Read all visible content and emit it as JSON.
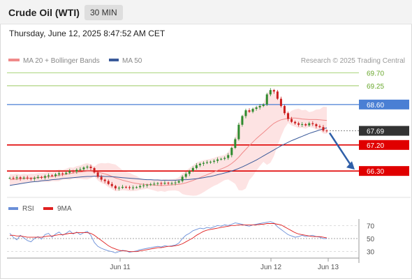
{
  "header": {
    "title": "Crude Oil (WTI)",
    "timeframe": "30 MIN"
  },
  "datetime": "Thursday, June 12, 2025 8:47:52 AM CET",
  "legend": {
    "ma20_label": "MA 20 + Bollinger Bands",
    "ma50_label": "MA 50",
    "credit": "Research © 2025 Trading Central"
  },
  "rsi_legend": {
    "rsi_label": "RSI",
    "ma_label": "9MA"
  },
  "colors": {
    "candle_up": "#2e8b2e",
    "candle_down": "#cc1f1f",
    "bollinger_fill": "#fde3e3",
    "ma20": "#f08a8a",
    "ma50": "#3a5a9a",
    "resistance_green": "#8bc34a",
    "pivot_blue": "#4a7fd4",
    "support_red": "#e00000",
    "last_price": "#333333",
    "rsi": "#6a8fd8",
    "rsi_ma": "#e02020",
    "arrow": "#2f5fa8"
  },
  "chart_data": {
    "type": "candlestick",
    "x_ticks": [
      "Jun 11",
      "Jun 12",
      "Jun 13"
    ],
    "y_range": [
      65.7,
      69.9
    ],
    "levels": [
      {
        "value": 69.7,
        "label": "69.70",
        "kind": "resistance"
      },
      {
        "value": 69.25,
        "label": "69.25",
        "kind": "resistance"
      },
      {
        "value": 68.6,
        "label": "68.60",
        "kind": "pivot"
      },
      {
        "value": 67.2,
        "label": "67.20",
        "kind": "support"
      },
      {
        "value": 66.3,
        "label": "66.30",
        "kind": "support"
      }
    ],
    "last_price": {
      "value": 67.69,
      "label": "67.69"
    },
    "closes": [
      66.06,
      66.05,
      66.08,
      66.04,
      66.07,
      66.05,
      66.03,
      66.06,
      66.09,
      66.07,
      66.12,
      66.15,
      66.13,
      66.18,
      66.22,
      66.2,
      66.24,
      66.3,
      66.28,
      66.34,
      66.36,
      66.42,
      66.45,
      66.4,
      66.25,
      66.1,
      66.0,
      65.95,
      65.85,
      65.78,
      65.7,
      65.72,
      65.75,
      65.74,
      65.72,
      65.73,
      65.74,
      65.78,
      65.8,
      65.82,
      65.84,
      65.86,
      65.88,
      65.86,
      65.89,
      65.87,
      65.88,
      65.9,
      65.95,
      66.1,
      66.2,
      66.3,
      66.4,
      66.5,
      66.55,
      66.58,
      66.6,
      66.62,
      66.65,
      66.7,
      66.72,
      66.75,
      66.85,
      67.1,
      67.4,
      67.9,
      68.2,
      68.4,
      68.35,
      68.45,
      68.5,
      68.55,
      68.6,
      68.95,
      69.1,
      69.05,
      68.8,
      68.55,
      68.3,
      68.1,
      68.0,
      67.95,
      67.9,
      67.92,
      67.88,
      67.95,
      67.92,
      67.85,
      67.82,
      67.7,
      67.69
    ],
    "ma20": [
      66.0,
      66.01,
      66.02,
      66.03,
      66.04,
      66.05,
      66.05,
      66.06,
      66.07,
      66.08,
      66.09,
      66.1,
      66.11,
      66.13,
      66.15,
      66.17,
      66.19,
      66.21,
      66.23,
      66.25,
      66.26,
      66.28,
      66.29,
      66.29,
      66.28,
      66.26,
      66.23,
      66.2,
      66.16,
      66.11,
      66.06,
      66.02,
      65.98,
      65.95,
      65.92,
      65.89,
      65.87,
      65.85,
      65.84,
      65.83,
      65.82,
      65.81,
      65.8,
      65.8,
      65.8,
      65.81,
      65.82,
      65.83,
      65.84,
      65.86,
      65.89,
      65.93,
      65.97,
      66.02,
      66.07,
      66.12,
      66.17,
      66.22,
      66.27,
      66.32,
      66.37,
      66.42,
      66.48,
      66.56,
      66.66,
      66.78,
      66.92,
      67.05,
      67.18,
      67.3,
      67.42,
      67.53,
      67.63,
      67.74,
      67.85,
      67.95,
      68.02,
      68.07,
      68.1,
      68.12,
      68.13,
      68.13,
      68.12,
      68.1,
      68.09,
      68.08,
      68.08,
      68.08,
      68.07,
      68.06,
      68.05
    ],
    "ma50": [
      65.8,
      65.82,
      65.84,
      65.86,
      65.88,
      65.9,
      65.92,
      65.93,
      65.94,
      65.96,
      65.97,
      65.98,
      66.0,
      66.01,
      66.02,
      66.04,
      66.05,
      66.06,
      66.07,
      66.08,
      66.09,
      66.1,
      66.11,
      66.11,
      66.12,
      66.12,
      66.12,
      66.11,
      66.11,
      66.1,
      66.09,
      66.08,
      66.07,
      66.06,
      66.05,
      66.04,
      66.03,
      66.02,
      66.01,
      66.0,
      66.0,
      65.99,
      65.99,
      65.98,
      65.98,
      65.98,
      65.98,
      65.98,
      65.99,
      66.0,
      66.0,
      66.01,
      66.02,
      66.03,
      66.05,
      66.07,
      66.09,
      66.11,
      66.14,
      66.17,
      66.2,
      66.23,
      66.26,
      66.3,
      66.34,
      66.39,
      66.44,
      66.5,
      66.56,
      66.62,
      66.68,
      66.75,
      66.82,
      66.89,
      66.96,
      67.03,
      67.1,
      67.17,
      67.23,
      67.29,
      67.35,
      67.4,
      67.45,
      67.5,
      67.55,
      67.6,
      67.64,
      67.68,
      67.72,
      67.76,
      67.79
    ]
  },
  "rsi_chart": {
    "type": "line",
    "y_ticks": [
      "70",
      "50",
      "30"
    ],
    "y_range": [
      20,
      80
    ],
    "rsi": [
      58,
      52,
      48,
      55,
      51,
      47,
      45,
      50,
      53,
      49,
      56,
      58,
      52,
      57,
      60,
      55,
      58,
      62,
      57,
      60,
      56,
      59,
      61,
      55,
      44,
      38,
      35,
      33,
      31,
      30,
      28,
      30,
      32,
      31,
      29,
      30,
      31,
      33,
      34,
      35,
      36,
      37,
      38,
      37,
      39,
      38,
      39,
      40,
      43,
      50,
      55,
      58,
      62,
      64,
      66,
      65,
      67,
      66,
      68,
      70,
      69,
      71,
      70,
      72,
      74,
      73,
      72,
      70,
      69,
      71,
      72,
      73,
      74,
      75,
      76,
      74,
      68,
      64,
      60,
      56,
      54,
      52,
      53,
      55,
      53,
      54,
      55,
      53,
      52,
      50,
      50
    ],
    "rsi_ma": [
      55,
      55,
      54,
      54,
      53,
      52,
      52,
      52,
      52,
      52,
      53,
      54,
      54,
      55,
      56,
      56,
      57,
      58,
      58,
      59,
      59,
      59,
      59,
      58,
      55,
      51,
      47,
      43,
      39,
      36,
      34,
      32,
      31,
      31,
      30,
      30,
      30,
      31,
      32,
      33,
      34,
      35,
      36,
      36,
      37,
      38,
      38,
      39,
      40,
      42,
      45,
      48,
      51,
      55,
      58,
      61,
      63,
      64,
      65,
      66,
      67,
      68,
      69,
      70,
      70,
      71,
      71,
      71,
      71,
      71,
      71,
      72,
      72,
      73,
      73,
      73,
      72,
      71,
      68,
      65,
      62,
      59,
      57,
      56,
      55,
      54,
      53,
      53,
      53,
      52,
      51
    ]
  }
}
